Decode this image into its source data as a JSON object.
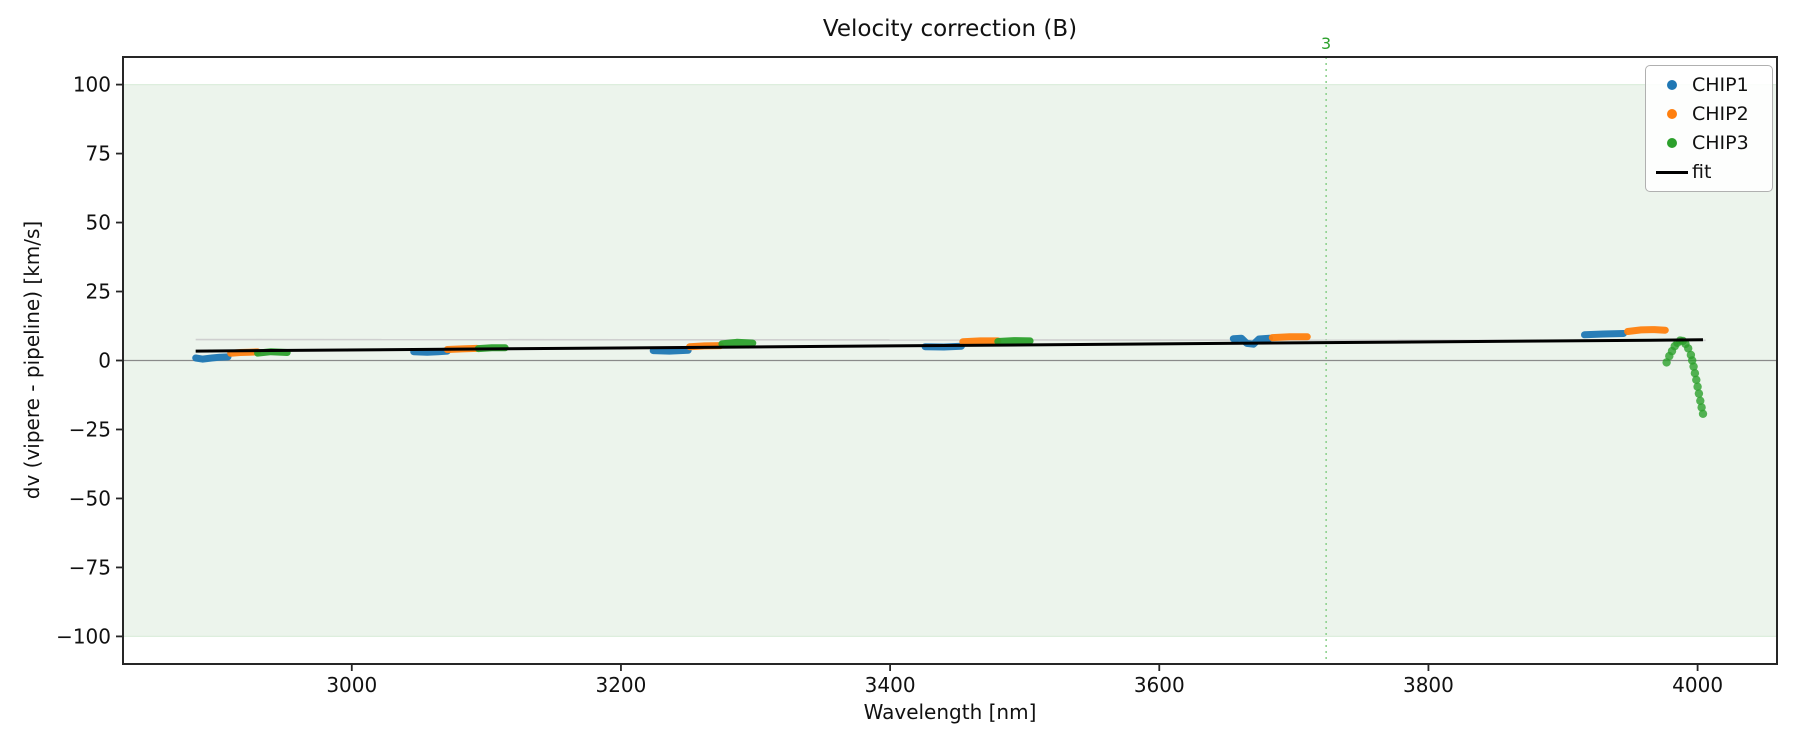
{
  "figure": {
    "title": "Velocity correction (B)",
    "xlabel": "Wavelength [nm]",
    "ylabel": "dv (vipere - pipeline) [km/s]"
  },
  "chart_data": {
    "type": "scatter",
    "title": "Velocity correction (B)",
    "xlabel": "Wavelength [nm]",
    "ylabel": "dv (vipere - pipeline) [km/s]",
    "xlim": [
      2830,
      4059
    ],
    "ylim": [
      -110,
      110
    ],
    "xticks": [
      3000,
      3200,
      3400,
      3600,
      3800,
      4000
    ],
    "yticks": [
      100,
      75,
      50,
      25,
      0,
      -25,
      -50,
      -75,
      -100
    ],
    "grid": false,
    "legend_position": "upper right",
    "band": {
      "ymin": -100,
      "ymax": 100,
      "color": "#ecf4ec",
      "edge_color": "#ddeedd"
    },
    "zero_line": {
      "y": 0,
      "color": "#8a8a8a"
    },
    "vline": {
      "x": 3724,
      "label": "3",
      "line_color": "#90d290",
      "label_color": "#2ca02c"
    },
    "ghost_line": {
      "x": [
        2884,
        4006
      ],
      "y": [
        7.6,
        7.3
      ],
      "color": "#cfcfcf"
    },
    "fit_line": {
      "label": "fit",
      "color": "#000000",
      "x": [
        2884,
        4004
      ],
      "y": [
        3.4,
        7.5
      ]
    },
    "legend": [
      {
        "label": "CHIP1",
        "color": "#1f77b4",
        "marker": "dot"
      },
      {
        "label": "CHIP2",
        "color": "#ff7f0e",
        "marker": "dot"
      },
      {
        "label": "CHIP3",
        "color": "#2ca02c",
        "marker": "dot"
      },
      {
        "label": "fit",
        "color": "#000000",
        "marker": "line"
      }
    ],
    "series": [
      {
        "name": "CHIP1",
        "color": "#1f77b4",
        "segments": [
          [
            [
              2884,
              0.9
            ],
            [
              2889,
              0.5
            ],
            [
              2896,
              0.9
            ],
            [
              2902,
              1.2
            ],
            [
              2908,
              1.3
            ]
          ],
          [
            [
              3046,
              3.2
            ],
            [
              3056,
              3.0
            ],
            [
              3064,
              3.2
            ],
            [
              3071,
              3.4
            ]
          ],
          [
            [
              3224,
              3.6
            ],
            [
              3236,
              3.4
            ],
            [
              3250,
              3.7
            ]
          ],
          [
            [
              3426,
              5.0
            ],
            [
              3440,
              4.9
            ],
            [
              3453,
              5.2
            ]
          ],
          [
            [
              3655,
              7.9
            ],
            [
              3661,
              8.1
            ],
            [
              3665,
              6.2
            ],
            [
              3670,
              5.9
            ],
            [
              3674,
              7.8
            ],
            [
              3682,
              8.1
            ]
          ],
          [
            [
              3916,
              9.3
            ],
            [
              3930,
              9.6
            ],
            [
              3945,
              9.8
            ]
          ]
        ]
      },
      {
        "name": "CHIP2",
        "color": "#ff7f0e",
        "segments": [
          [
            [
              2910,
              2.6
            ],
            [
              2917,
              2.9
            ],
            [
              2924,
              3.0
            ],
            [
              2930,
              3.1
            ]
          ],
          [
            [
              3071,
              4.0
            ],
            [
              3082,
              4.2
            ],
            [
              3093,
              4.4
            ]
          ],
          [
            [
              3251,
              5.0
            ],
            [
              3262,
              5.3
            ],
            [
              3274,
              5.4
            ]
          ],
          [
            [
              3454,
              6.8
            ],
            [
              3467,
              7.1
            ],
            [
              3480,
              7.1
            ]
          ],
          [
            [
              3684,
              8.3
            ],
            [
              3697,
              8.6
            ],
            [
              3710,
              8.6
            ]
          ],
          [
            [
              3948,
              10.5
            ],
            [
              3958,
              11.1
            ],
            [
              3968,
              11.2
            ],
            [
              3976,
              11.0
            ]
          ]
        ]
      },
      {
        "name": "CHIP3",
        "color": "#2ca02c",
        "segments": [
          [
            [
              2930,
              2.7
            ],
            [
              2940,
              3.2
            ],
            [
              2952,
              2.9
            ]
          ],
          [
            [
              3094,
              4.3
            ],
            [
              3104,
              4.6
            ],
            [
              3114,
              4.6
            ]
          ],
          [
            [
              3275,
              6.0
            ],
            [
              3286,
              6.6
            ],
            [
              3298,
              6.3
            ]
          ],
          [
            [
              3480,
              6.9
            ],
            [
              3492,
              7.2
            ],
            [
              3504,
              7.1
            ]
          ]
        ],
        "marker_points": [
          [
            3977,
            -0.7
          ],
          [
            3979,
            1.6
          ],
          [
            3981,
            3.4
          ],
          [
            3983,
            5.2
          ],
          [
            3985,
            6.4
          ],
          [
            3987,
            7.2
          ],
          [
            3989,
            7.1
          ],
          [
            3991,
            6.0
          ],
          [
            3993,
            4.4
          ],
          [
            3995,
            2.0
          ],
          [
            3996,
            0.0
          ],
          [
            3997,
            -2.2
          ],
          [
            3998,
            -4.6
          ],
          [
            3999,
            -7.0
          ],
          [
            4000,
            -9.5
          ],
          [
            4001,
            -12.0
          ],
          [
            4002,
            -14.6
          ],
          [
            4003,
            -17.0
          ],
          [
            4004,
            -19.3
          ]
        ]
      }
    ]
  }
}
